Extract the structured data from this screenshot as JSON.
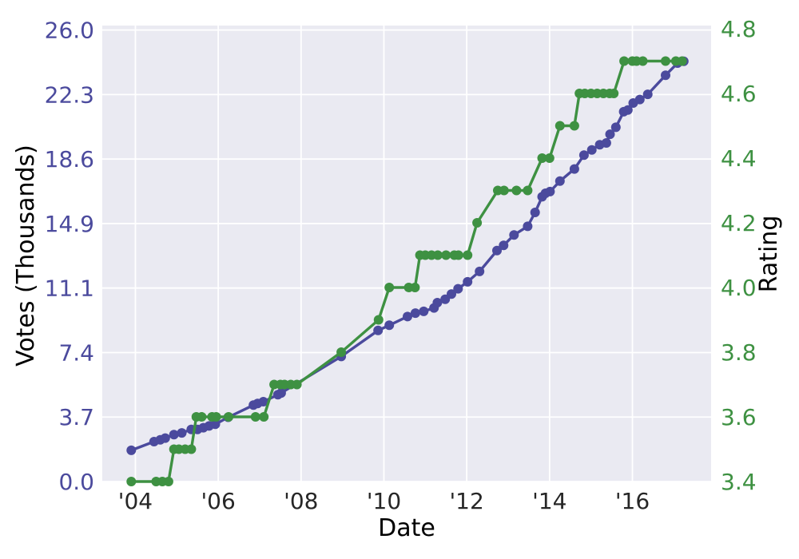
{
  "chart_data": {
    "type": "line",
    "title": "",
    "xlabel": "Date",
    "ylabel_left": "Votes (Thousands)",
    "ylabel_right": "Rating",
    "grid": true,
    "legend": false,
    "xlim": [
      2003.2,
      2017.9
    ],
    "ylim_left": [
      0,
      26.26
    ],
    "ylim_right": [
      3.4,
      4.81
    ],
    "x_ticks": [
      {
        "year": 2004,
        "label": "'04"
      },
      {
        "year": 2006,
        "label": "'06"
      },
      {
        "year": 2008,
        "label": "'08"
      },
      {
        "year": 2010,
        "label": "'10"
      },
      {
        "year": 2012,
        "label": "'12"
      },
      {
        "year": 2014,
        "label": "'14"
      },
      {
        "year": 2016,
        "label": "'16"
      }
    ],
    "left_ticks": [
      {
        "value": 0.0,
        "label": "0.0"
      },
      {
        "value": 3.714,
        "label": "3.7"
      },
      {
        "value": 7.429,
        "label": "7.4"
      },
      {
        "value": 11.143,
        "label": "11.1"
      },
      {
        "value": 14.857,
        "label": "14.9"
      },
      {
        "value": 18.571,
        "label": "18.6"
      },
      {
        "value": 22.286,
        "label": "22.3"
      },
      {
        "value": 26.0,
        "label": "26.0"
      }
    ],
    "right_ticks": [
      {
        "value": 3.4,
        "label": "3.4"
      },
      {
        "value": 3.6,
        "label": "3.6"
      },
      {
        "value": 3.8,
        "label": "3.8"
      },
      {
        "value": 4.0,
        "label": "4.0"
      },
      {
        "value": 4.2,
        "label": "4.2"
      },
      {
        "value": 4.4,
        "label": "4.4"
      },
      {
        "value": 4.6,
        "label": "4.6"
      },
      {
        "value": 4.8,
        "label": "4.8"
      }
    ],
    "colors": {
      "votes": "#4b4a9d",
      "rating": "#3e9142",
      "xtick_text": "#262626",
      "plot_bg": "#eaeaf2",
      "gridline": "#ffffff",
      "figure_bg": "#ffffff"
    },
    "series": [
      {
        "name": "Votes (Thousands)",
        "axis": "left",
        "points": [
          [
            2003.9,
            1.8
          ],
          [
            2004.45,
            2.3
          ],
          [
            2004.6,
            2.4
          ],
          [
            2004.72,
            2.5
          ],
          [
            2004.93,
            2.7
          ],
          [
            2005.12,
            2.8
          ],
          [
            2005.35,
            3.0
          ],
          [
            2005.5,
            3.0
          ],
          [
            2005.64,
            3.1
          ],
          [
            2005.78,
            3.2
          ],
          [
            2005.93,
            3.3
          ],
          [
            2006.24,
            3.7
          ],
          [
            2006.85,
            4.4
          ],
          [
            2006.95,
            4.5
          ],
          [
            2007.09,
            4.6
          ],
          [
            2007.44,
            5.0
          ],
          [
            2007.52,
            5.1
          ],
          [
            2008.97,
            7.2
          ],
          [
            2009.86,
            8.7
          ],
          [
            2010.13,
            9.0
          ],
          [
            2010.57,
            9.5
          ],
          [
            2010.76,
            9.7
          ],
          [
            2010.96,
            9.8
          ],
          [
            2011.21,
            10.0
          ],
          [
            2011.29,
            10.3
          ],
          [
            2011.48,
            10.5
          ],
          [
            2011.63,
            10.8
          ],
          [
            2011.79,
            11.1
          ],
          [
            2012.02,
            11.5
          ],
          [
            2012.31,
            12.1
          ],
          [
            2012.73,
            13.3
          ],
          [
            2012.89,
            13.6
          ],
          [
            2013.14,
            14.2
          ],
          [
            2013.47,
            14.7
          ],
          [
            2013.65,
            15.5
          ],
          [
            2013.82,
            16.4
          ],
          [
            2013.9,
            16.6
          ],
          [
            2014.01,
            16.7
          ],
          [
            2014.25,
            17.3
          ],
          [
            2014.6,
            18.0
          ],
          [
            2014.83,
            18.8
          ],
          [
            2015.02,
            19.1
          ],
          [
            2015.21,
            19.4
          ],
          [
            2015.37,
            19.5
          ],
          [
            2015.46,
            20.0
          ],
          [
            2015.6,
            20.4
          ],
          [
            2015.79,
            21.3
          ],
          [
            2015.89,
            21.4
          ],
          [
            2016.02,
            21.8
          ],
          [
            2016.18,
            22.0
          ],
          [
            2016.37,
            22.3
          ],
          [
            2016.8,
            23.4
          ],
          [
            2017.09,
            24.1
          ],
          [
            2017.24,
            24.2
          ]
        ]
      },
      {
        "name": "Rating",
        "axis": "right",
        "points": [
          [
            2003.9,
            3.4
          ],
          [
            2004.5,
            3.4
          ],
          [
            2004.65,
            3.4
          ],
          [
            2004.8,
            3.4
          ],
          [
            2004.93,
            3.5
          ],
          [
            2005.05,
            3.5
          ],
          [
            2005.2,
            3.5
          ],
          [
            2005.35,
            3.5
          ],
          [
            2005.47,
            3.6
          ],
          [
            2005.6,
            3.6
          ],
          [
            2005.85,
            3.6
          ],
          [
            2005.95,
            3.6
          ],
          [
            2006.25,
            3.6
          ],
          [
            2006.9,
            3.6
          ],
          [
            2007.1,
            3.6
          ],
          [
            2007.35,
            3.7
          ],
          [
            2007.5,
            3.7
          ],
          [
            2007.6,
            3.7
          ],
          [
            2007.75,
            3.7
          ],
          [
            2007.9,
            3.7
          ],
          [
            2008.97,
            3.8
          ],
          [
            2009.87,
            3.9
          ],
          [
            2010.13,
            4.0
          ],
          [
            2010.6,
            4.0
          ],
          [
            2010.75,
            4.0
          ],
          [
            2010.87,
            4.1
          ],
          [
            2011.0,
            4.1
          ],
          [
            2011.15,
            4.1
          ],
          [
            2011.3,
            4.1
          ],
          [
            2011.5,
            4.1
          ],
          [
            2011.7,
            4.1
          ],
          [
            2011.8,
            4.1
          ],
          [
            2012.02,
            4.1
          ],
          [
            2012.25,
            4.2
          ],
          [
            2012.75,
            4.3
          ],
          [
            2012.9,
            4.3
          ],
          [
            2013.2,
            4.3
          ],
          [
            2013.47,
            4.3
          ],
          [
            2013.82,
            4.4
          ],
          [
            2014.0,
            4.4
          ],
          [
            2014.25,
            4.5
          ],
          [
            2014.6,
            4.5
          ],
          [
            2014.72,
            4.6
          ],
          [
            2014.85,
            4.6
          ],
          [
            2015.0,
            4.6
          ],
          [
            2015.15,
            4.6
          ],
          [
            2015.3,
            4.6
          ],
          [
            2015.45,
            4.6
          ],
          [
            2015.55,
            4.6
          ],
          [
            2015.8,
            4.7
          ],
          [
            2016.0,
            4.7
          ],
          [
            2016.1,
            4.7
          ],
          [
            2016.25,
            4.7
          ],
          [
            2016.8,
            4.7
          ],
          [
            2017.05,
            4.7
          ],
          [
            2017.2,
            4.7
          ]
        ]
      }
    ]
  }
}
